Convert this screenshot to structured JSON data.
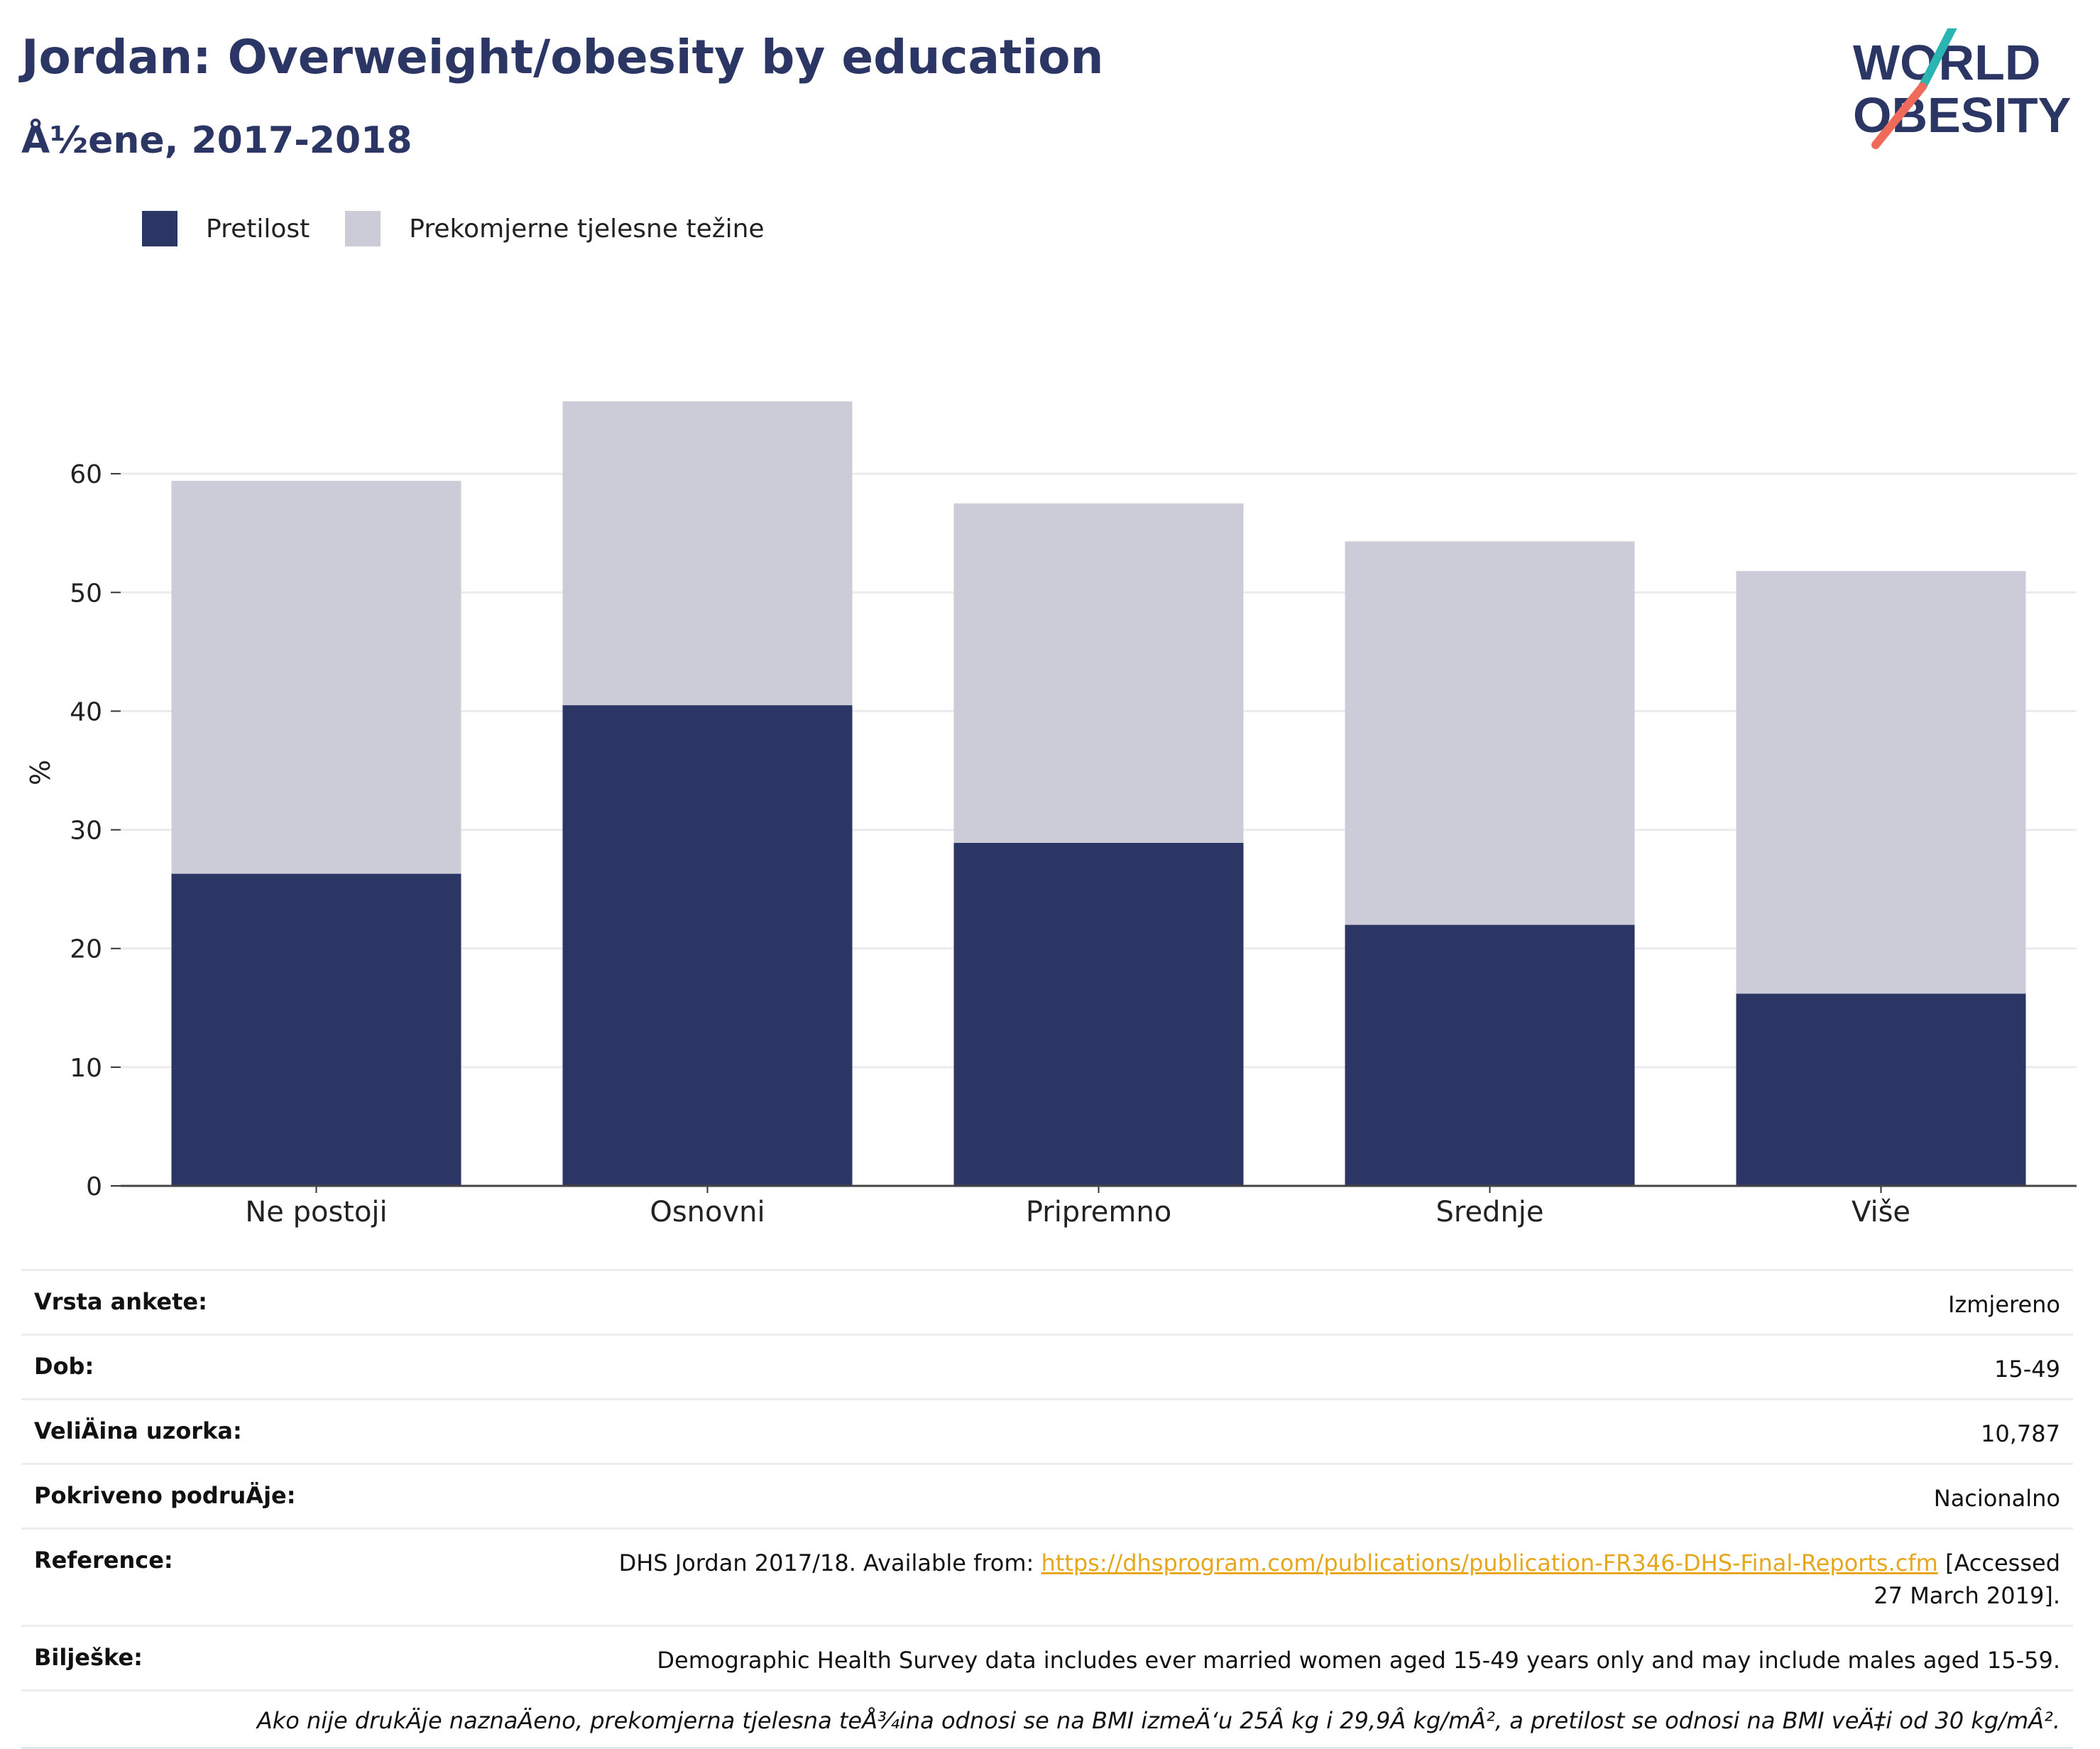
{
  "header": {
    "title": "Jordan: Overweight/obesity by education",
    "subtitle": "Å½ene, 2017-2018"
  },
  "logo": {
    "line1": "WORLD",
    "line2": "OBESITY"
  },
  "colors": {
    "obesity": "#2b3664",
    "overweight": "#cbccd8",
    "title": "#2b3664",
    "link": "#e7a61b"
  },
  "chart_data": {
    "type": "bar",
    "stacked": true,
    "categories": [
      "Ne postoji",
      "Osnovni",
      "Pripremno",
      "Srednje",
      "Više"
    ],
    "series": [
      {
        "name": "Pretilost",
        "values": [
          26.3,
          40.5,
          28.9,
          22.0,
          16.2
        ]
      },
      {
        "name": "Prekomjerne tjelesne težine",
        "values": [
          33.1,
          25.6,
          28.6,
          32.3,
          35.6
        ]
      }
    ],
    "ylabel": "%",
    "ylim": [
      0,
      70
    ],
    "yticks": [
      0,
      10,
      20,
      30,
      40,
      50,
      60
    ],
    "grid": true,
    "legend": "top-left"
  },
  "meta": {
    "survey_type": {
      "label": "Vrsta ankete:",
      "value": "Izmjereno"
    },
    "age": {
      "label": "Dob:",
      "value": "15-49"
    },
    "sample": {
      "label": "VeliÄ\u001fina uzorka:",
      "value": "10,787"
    },
    "coverage": {
      "label": "Pokriveno podruÄ\u001fje:",
      "value": "Nacionalno"
    },
    "reference": {
      "label": "Reference:",
      "prefix": "DHS Jordan 2017/18. Available from: ",
      "link": "https://dhsprogram.com/publications/publication-FR346-DHS-Final-Reports.cfm",
      "suffix": " [Accessed 27 March 2019]."
    },
    "notes": {
      "label": "Bilješke:",
      "value": "Demographic Health Survey data includes ever married women aged 15-49 years only and may include males aged 15-59."
    },
    "footnote": "Ako nije drukÄ\u001fje naznaÄ\u001feno, prekomjerna tjelesna teÅ¾ina odnosi se na BMI izmeÄ‘u 25Â kg i 29,9Â kg/mÂ², a pretilost se odnosi na BMI veÄ‡i od 30 kg/mÂ²."
  }
}
